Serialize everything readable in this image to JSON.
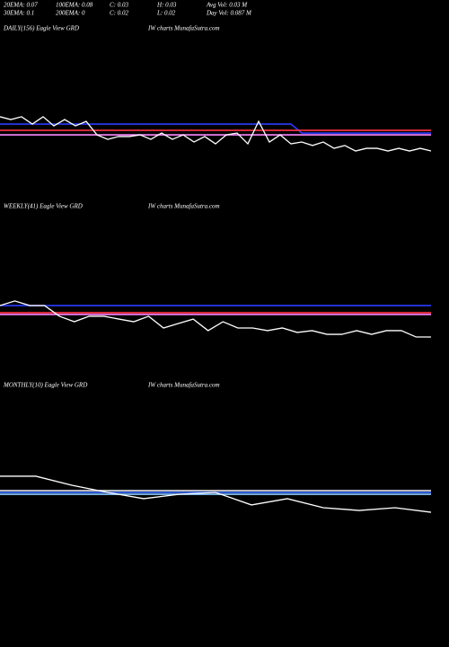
{
  "header": {
    "row1": [
      "20EMA: 0.07",
      "100EMA: 0.08",
      "C: 0.03",
      "H: 0.03",
      "Avg Vol: 0.03  M"
    ],
    "row2": [
      "30EMA: 0.1",
      "200EMA: 0",
      "C: 0.02",
      "L: 0.02",
      "Day Vol: 0.087  M"
    ]
  },
  "chart_data": [
    {
      "type": "line",
      "title": "DAILY(156) Eagle  View  GRD",
      "watermark": "IW charts MunafaSutra.com",
      "xlim": [
        0,
        40
      ],
      "ylim": [
        0,
        0.1
      ],
      "series": [
        {
          "color": "#2b3cff",
          "x": [
            0,
            27,
            28,
            40
          ],
          "values": [
            0.047,
            0.047,
            0.0416,
            0.0416
          ]
        },
        {
          "color": "#ff3344",
          "x": [
            0,
            40
          ],
          "values": [
            0.0432,
            0.0432
          ]
        },
        {
          "color": "#ff88ff",
          "x": [
            0,
            40
          ],
          "values": [
            0.0405,
            0.0405
          ]
        },
        {
          "color": "#ffffff",
          "x": [
            0,
            1,
            2,
            3,
            4,
            5,
            6,
            7,
            8,
            9,
            10,
            11,
            12,
            13,
            14,
            15,
            16,
            17,
            18,
            19,
            20,
            21,
            22,
            23,
            24,
            25,
            26,
            27,
            28,
            29,
            30,
            31,
            32,
            33,
            34,
            35,
            36,
            37,
            38,
            39,
            40
          ],
          "values": [
            0.0514,
            0.0497,
            0.0514,
            0.047,
            0.0514,
            0.0459,
            0.0497,
            0.0459,
            0.0486,
            0.0405,
            0.0378,
            0.0395,
            0.0395,
            0.0405,
            0.0378,
            0.0416,
            0.0378,
            0.0405,
            0.0362,
            0.0395,
            0.0351,
            0.0405,
            0.0416,
            0.0351,
            0.0486,
            0.0362,
            0.0405,
            0.0351,
            0.0362,
            0.0341,
            0.0362,
            0.0324,
            0.0341,
            0.0308,
            0.0324,
            0.0324,
            0.0308,
            0.0324,
            0.0308,
            0.0324,
            0.0308
          ]
        }
      ]
    },
    {
      "type": "line",
      "title": "WEEKLY(41) Eagle  View  GRD",
      "watermark": "IW charts MunafaSutra.com",
      "xlim": [
        0,
        29
      ],
      "ylim": [
        0,
        0.1
      ],
      "series": [
        {
          "color": "#2b3cff",
          "x": [
            0,
            29
          ],
          "values": [
            0.0333,
            0.0333
          ]
        },
        {
          "color": "#ff3344",
          "x": [
            0,
            29
          ],
          "values": [
            0.0285,
            0.0285
          ]
        },
        {
          "color": "#ff88ff",
          "x": [
            0,
            29
          ],
          "values": [
            0.0273,
            0.0273
          ]
        },
        {
          "color": "#ffffff",
          "x": [
            0,
            1,
            2,
            3,
            4,
            5,
            6,
            7,
            8,
            9,
            10,
            11,
            12,
            13,
            14,
            15,
            16,
            17,
            18,
            19,
            20,
            21,
            22,
            23,
            24,
            25,
            26,
            27,
            28,
            29
          ],
          "values": [
            0.0333,
            0.0364,
            0.0333,
            0.0333,
            0.0261,
            0.0224,
            0.0261,
            0.0261,
            0.0242,
            0.0224,
            0.0261,
            0.0182,
            0.0212,
            0.0242,
            0.0164,
            0.0224,
            0.0182,
            0.0182,
            0.0164,
            0.0182,
            0.0152,
            0.0164,
            0.0139,
            0.0139,
            0.0164,
            0.0139,
            0.0164,
            0.0164,
            0.0121,
            0.0121
          ]
        }
      ]
    },
    {
      "type": "line",
      "title": "MONTHLY(10) Eagle  View  GRD",
      "watermark": "IW charts MunafaSutra.com",
      "xlim": [
        0,
        12
      ],
      "ylim": [
        0,
        0.1
      ],
      "series": [
        {
          "color": "#dddddd",
          "x": [
            0,
            12
          ],
          "values": [
            0.0318,
            0.0318
          ]
        },
        {
          "color": "#3b6cff",
          "x": [
            0,
            12
          ],
          "values": [
            0.0306,
            0.0306
          ]
        },
        {
          "color": "#88ccff",
          "x": [
            0,
            12
          ],
          "values": [
            0.0294,
            0.0294
          ]
        },
        {
          "color": "#ffffff",
          "x": [
            0,
            1,
            2,
            3,
            4,
            5,
            6,
            7,
            8,
            9,
            10,
            11,
            12
          ],
          "values": [
            0.0412,
            0.0412,
            0.0353,
            0.0306,
            0.0265,
            0.0294,
            0.0306,
            0.0224,
            0.0265,
            0.0206,
            0.0188,
            0.0206,
            0.0176
          ]
        }
      ]
    }
  ]
}
